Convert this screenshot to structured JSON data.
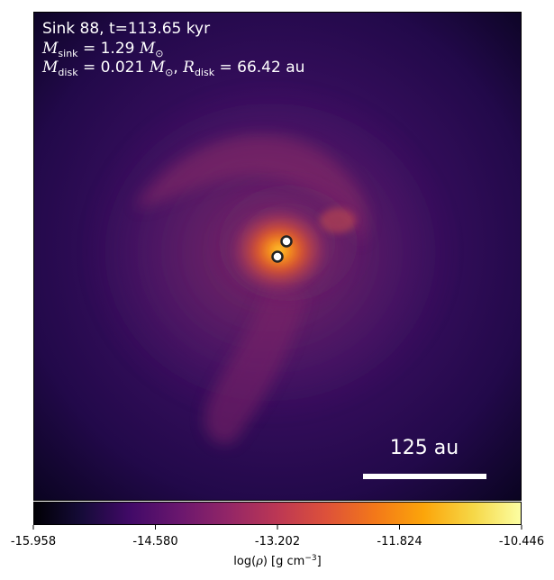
{
  "panel": {
    "line1": "Sink 88, t=113.65 kyr",
    "line2": {
      "symbol": "M",
      "sub": "sink",
      "eq": " = 1.29 ",
      "unit": "M",
      "unit_sub": "⊙"
    },
    "line3": {
      "symbol1": "M",
      "sub1": "disk",
      "eq1": " = 0.021 ",
      "unit1": "M",
      "unit1_sub": "⊙",
      "sep": ", ",
      "symbol2": "R",
      "sub2": "disk",
      "eq2": " = 66.42 au"
    }
  },
  "scale_bar": {
    "label": "125 au"
  },
  "colorbar": {
    "ticks": [
      "-15.958",
      "-14.580",
      "-13.202",
      "-11.824",
      "-10.446"
    ],
    "label_prefix": "log(",
    "label_rho": "ρ",
    "label_suffix": ") [g cm",
    "label_exp": "−3",
    "label_end": "]",
    "colormap": "inferno"
  },
  "colors": {
    "background_outer": "#0b0520",
    "background_mid": "#3a0e5e",
    "structure": "#8a2a6e",
    "core": "#f0701e",
    "sink_marker_fill": "#ffffff",
    "sink_marker_edge": "#222222"
  },
  "sinks": [
    {
      "name": "sink-primary"
    },
    {
      "name": "sink-secondary"
    }
  ]
}
